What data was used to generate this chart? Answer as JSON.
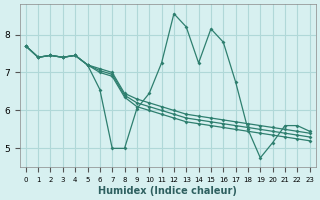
{
  "xlabel": "Humidex (Indice chaleur)",
  "ylabel": "",
  "bg_color": "#d7f0f0",
  "grid_color": "#b0d8d8",
  "line_color": "#2e7f6f",
  "xlim": [
    -0.5,
    23.5
  ],
  "ylim": [
    4.5,
    8.8
  ],
  "yticks": [
    5,
    6,
    7,
    8
  ],
  "xticks": [
    0,
    1,
    2,
    3,
    4,
    5,
    6,
    7,
    8,
    9,
    10,
    11,
    12,
    13,
    14,
    15,
    16,
    17,
    18,
    19,
    20,
    21,
    22,
    23
  ],
  "lines": [
    {
      "x": [
        0,
        1,
        2,
        3,
        4,
        5,
        6,
        7,
        8,
        9,
        10,
        11,
        12,
        13,
        14,
        15,
        16,
        17,
        18,
        19,
        20,
        21,
        22,
        23
      ],
      "y": [
        7.7,
        7.4,
        7.45,
        7.4,
        7.45,
        7.2,
        6.55,
        5.0,
        5.0,
        6.05,
        6.45,
        7.25,
        8.55,
        8.2,
        7.25,
        8.15,
        7.8,
        6.75,
        5.5,
        4.75,
        5.15,
        5.6,
        5.6,
        5.45
      ]
    },
    {
      "x": [
        0,
        1,
        2,
        3,
        4,
        5,
        6,
        7,
        8,
        9,
        10,
        11,
        12,
        13,
        14,
        15,
        16,
        17,
        18,
        19,
        20,
        21,
        22,
        23
      ],
      "y": [
        7.7,
        7.4,
        7.45,
        7.4,
        7.45,
        7.2,
        7.1,
        7.0,
        6.45,
        6.3,
        6.2,
        6.1,
        6.0,
        5.9,
        5.85,
        5.8,
        5.75,
        5.7,
        5.65,
        5.6,
        5.55,
        5.5,
        5.45,
        5.4
      ]
    },
    {
      "x": [
        0,
        1,
        2,
        3,
        4,
        5,
        6,
        7,
        8,
        9,
        10,
        11,
        12,
        13,
        14,
        15,
        16,
        17,
        18,
        19,
        20,
        21,
        22,
        23
      ],
      "y": [
        7.7,
        7.4,
        7.45,
        7.4,
        7.45,
        7.2,
        7.05,
        6.95,
        6.4,
        6.2,
        6.1,
        6.0,
        5.9,
        5.8,
        5.75,
        5.7,
        5.65,
        5.6,
        5.55,
        5.5,
        5.45,
        5.4,
        5.35,
        5.3
      ]
    },
    {
      "x": [
        0,
        1,
        2,
        3,
        4,
        5,
        6,
        7,
        8,
        9,
        10,
        11,
        12,
        13,
        14,
        15,
        16,
        17,
        18,
        19,
        20,
        21,
        22,
        23
      ],
      "y": [
        7.7,
        7.4,
        7.45,
        7.4,
        7.45,
        7.2,
        7.0,
        6.9,
        6.35,
        6.1,
        6.0,
        5.9,
        5.8,
        5.7,
        5.65,
        5.6,
        5.55,
        5.5,
        5.45,
        5.4,
        5.35,
        5.3,
        5.25,
        5.2
      ]
    }
  ]
}
